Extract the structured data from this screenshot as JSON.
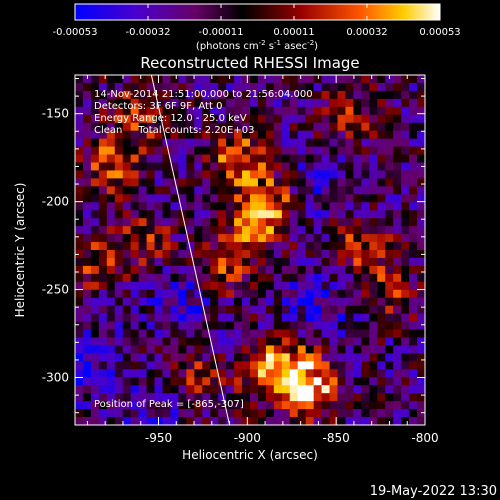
{
  "chart_data": {
    "type": "heatmap",
    "title": "Reconstructed RHESSI Image",
    "xlabel": "Heliocentric X (arcsec)",
    "ylabel": "Heliocentric Y (arcsec)",
    "xlim": [
      -997,
      -800
    ],
    "ylim": [
      -327,
      -128
    ],
    "x_ticks": [
      -950,
      -900,
      -850,
      -800
    ],
    "y_ticks": [
      -150,
      -200,
      -250,
      -300
    ],
    "colorbar": {
      "min": -0.00053,
      "max": 0.00053,
      "ticks": [
        "-0.00053",
        "-0.00032",
        "-0.00011",
        "0.00011",
        "0.00032",
        "0.00053"
      ],
      "units_label": "(photons cm",
      "units_exp1": "-2",
      "units_mid": " s",
      "units_exp2": "-1",
      "units_tail": " asec",
      "units_exp3": "-2",
      "units_close": ")"
    },
    "annotations": {
      "line1": "14-Nov-2014 21:51:00.000 to 21:56:04.000",
      "line2": "Detectors: 3F 6F 9F, Att 0",
      "line3": "Energy Range: 12.0 - 25.0 keV",
      "line4": "Clean     Total counts: 2.20E+03",
      "peak": "Position of Peak = [-865,-307]"
    },
    "hot_spots": [
      {
        "x": -865,
        "y": -307,
        "amp": 1.0
      },
      {
        "x": -878,
        "y": -290,
        "amp": 0.7
      },
      {
        "x": -890,
        "y": -300,
        "amp": 0.55
      },
      {
        "x": -905,
        "y": -175,
        "amp": 0.8
      },
      {
        "x": -888,
        "y": -200,
        "amp": 0.75
      },
      {
        "x": -897,
        "y": -215,
        "amp": 0.6
      },
      {
        "x": -915,
        "y": -240,
        "amp": 0.55
      },
      {
        "x": -975,
        "y": -178,
        "amp": 0.75
      },
      {
        "x": -960,
        "y": -150,
        "amp": 0.55
      },
      {
        "x": -985,
        "y": -235,
        "amp": 0.5
      },
      {
        "x": -958,
        "y": -222,
        "amp": 0.5
      },
      {
        "x": -835,
        "y": -225,
        "amp": 0.6
      },
      {
        "x": -820,
        "y": -250,
        "amp": 0.5
      },
      {
        "x": -842,
        "y": -150,
        "amp": 0.45
      },
      {
        "x": -930,
        "y": -300,
        "amp": 0.4
      }
    ],
    "cold_spots": [
      {
        "x": -995,
        "y": -290,
        "amp": 0.8
      },
      {
        "x": -935,
        "y": -255,
        "amp": 0.6
      },
      {
        "x": -860,
        "y": -260,
        "amp": 0.7
      },
      {
        "x": -860,
        "y": -190,
        "amp": 0.5
      },
      {
        "x": -955,
        "y": -320,
        "amp": 0.5
      }
    ],
    "limb_line": [
      [
        -954,
        -128
      ],
      [
        -910,
        -327
      ]
    ]
  },
  "footer": {
    "timestamp": "19-May-2022 13:30"
  }
}
